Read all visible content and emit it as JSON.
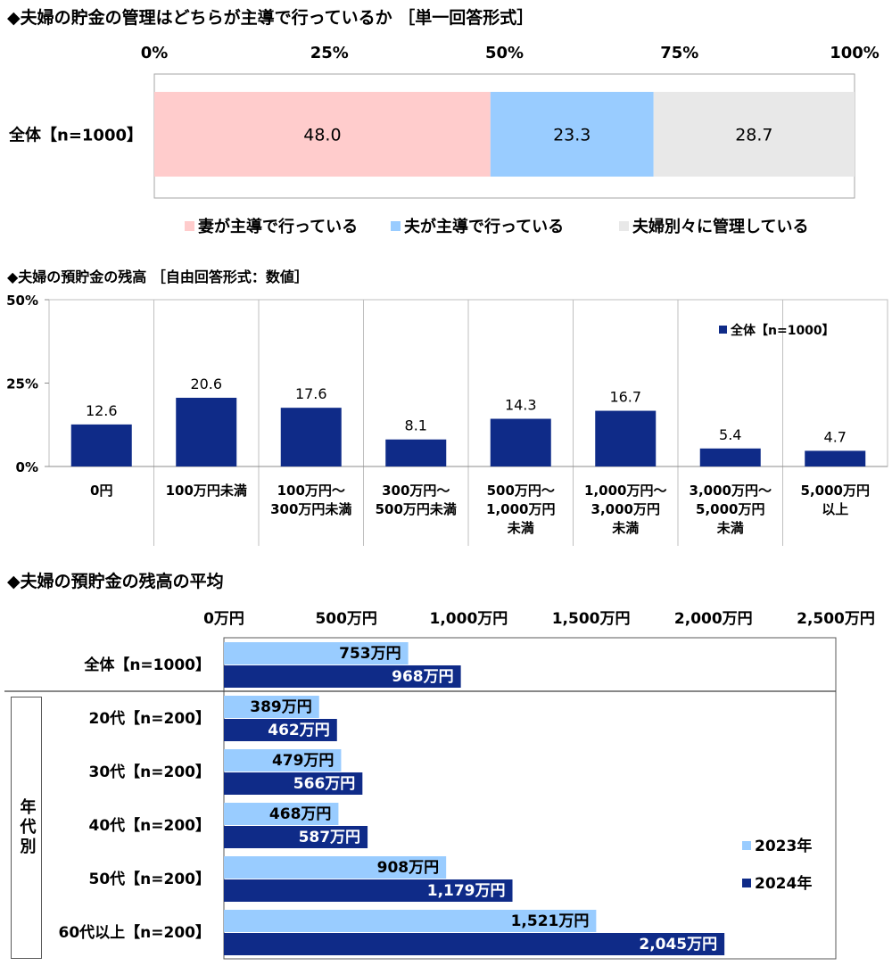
{
  "chart_data": [
    {
      "type": "bar",
      "orientation": "horizontal",
      "stacked": true,
      "title": "◆夫婦の貯金の管理はどちらが主導で行っているか ［単一回答形式］",
      "categories": [
        "全体【n=1000】"
      ],
      "xlim": [
        0,
        100
      ],
      "xticks": [
        0,
        25,
        50,
        75,
        100
      ],
      "xtick_labels": [
        "0%",
        "25%",
        "50%",
        "75%",
        "100%"
      ],
      "legend": "bottom",
      "series": [
        {
          "name": "妻が主導で行っている",
          "values": [
            48.0
          ],
          "data_labels": [
            "48.0"
          ],
          "color": "#ffcccc"
        },
        {
          "name": "夫が主導で行っている",
          "values": [
            23.3
          ],
          "data_labels": [
            "23.3"
          ],
          "color": "#99ccff"
        },
        {
          "name": "夫婦別々に管理している",
          "values": [
            28.7
          ],
          "data_labels": [
            "28.7"
          ],
          "color": "#e8e8e8"
        }
      ]
    },
    {
      "type": "bar",
      "orientation": "vertical",
      "title": "◆夫婦の預貯金の残高 ［自由回答形式：数値］",
      "categories": [
        [
          "0円"
        ],
        [
          "100万円未満"
        ],
        [
          "100万円～",
          "300万円未満"
        ],
        [
          "300万円～",
          "500万円未満"
        ],
        [
          "500万円～",
          "1,000万円",
          "未満"
        ],
        [
          "1,000万円～",
          "3,000万円",
          "未満"
        ],
        [
          "3,000万円～",
          "5,000万円",
          "未満"
        ],
        [
          "5,000万円",
          "以上"
        ]
      ],
      "ylim": [
        0,
        50
      ],
      "yticks": [
        0,
        25,
        50
      ],
      "ytick_labels": [
        "0%",
        "25%",
        "50%"
      ],
      "legend": "top-right",
      "series": [
        {
          "name": "全体【n=1000】",
          "values": [
            12.6,
            20.6,
            17.6,
            8.1,
            14.3,
            16.7,
            5.4,
            4.7
          ],
          "data_labels": [
            "12.6",
            "20.6",
            "17.6",
            "8.1",
            "14.3",
            "16.7",
            "5.4",
            "4.7"
          ],
          "color": "#0f2b88"
        }
      ]
    },
    {
      "type": "bar",
      "orientation": "horizontal",
      "title": "◆夫婦の預貯金の残高の平均",
      "categories": [
        "全体【n=1000】",
        "20代【n=200】",
        "30代【n=200】",
        "40代【n=200】",
        "50代【n=200】",
        "60代以上【n=200】"
      ],
      "group": {
        "label": "年代別",
        "first_index": 1,
        "last_index": 5
      },
      "xlim": [
        0,
        2500
      ],
      "xticks": [
        0,
        500,
        1000,
        1500,
        2000,
        2500
      ],
      "xtick_labels": [
        "0万円",
        "500万円",
        "1,000万円",
        "1,500万円",
        "2,000万円",
        "2,500万円"
      ],
      "legend": "right",
      "series": [
        {
          "name": "2023年",
          "values": [
            753,
            389,
            479,
            468,
            908,
            1521
          ],
          "data_labels": [
            "753万円",
            "389万円",
            "479万円",
            "468万円",
            "908万円",
            "1,521万円"
          ],
          "color": "#99ccff"
        },
        {
          "name": "2024年",
          "values": [
            968,
            462,
            566,
            587,
            1179,
            2045
          ],
          "data_labels": [
            "968万円",
            "462万円",
            "566万円",
            "587万円",
            "1,179万円",
            "2,045万円"
          ],
          "color": "#0f2b88"
        }
      ]
    }
  ]
}
